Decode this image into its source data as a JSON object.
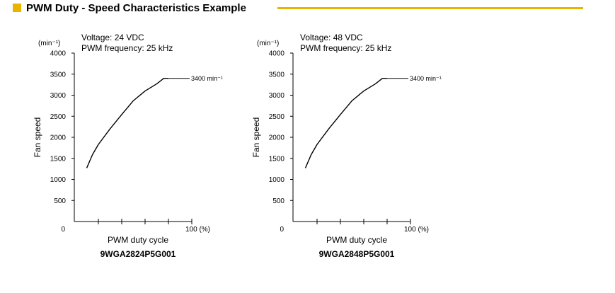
{
  "header": {
    "title": "PWM Duty - Speed Characteristics Example"
  },
  "colors": {
    "accent": "#E8B400",
    "line": "#000000"
  },
  "chart_data": [
    {
      "type": "line",
      "annotations": [
        "Voltage: 24 VDC",
        "PWM frequency: 25 kHz"
      ],
      "unit_label": "(min⁻¹)",
      "ylabel": "Fan speed",
      "xlabel": "PWM duty cycle",
      "x_end_label": "100 (%)",
      "origin_label": "0",
      "model": "9WGA2824P5G001",
      "end_label": "3400 min⁻¹",
      "ylim": [
        0,
        4000
      ],
      "xlim": [
        0,
        100
      ],
      "yticks": [
        500,
        1000,
        1500,
        2000,
        2500,
        3000,
        3500,
        4000
      ],
      "x": [
        10,
        15,
        20,
        30,
        40,
        50,
        60,
        70,
        76,
        80,
        100
      ],
      "y": [
        1270,
        1590,
        1830,
        2200,
        2540,
        2870,
        3100,
        3270,
        3400,
        3400,
        3400
      ]
    },
    {
      "type": "line",
      "annotations": [
        "Voltage: 48 VDC",
        "PWM frequency: 25 kHz"
      ],
      "unit_label": "(min⁻¹)",
      "ylabel": "Fan speed",
      "xlabel": "PWM duty cycle",
      "x_end_label": "100 (%)",
      "origin_label": "0",
      "model": "9WGA2848P5G001",
      "end_label": "3400 min⁻¹",
      "ylim": [
        0,
        4000
      ],
      "xlim": [
        0,
        100
      ],
      "yticks": [
        500,
        1000,
        1500,
        2000,
        2500,
        3000,
        3500,
        4000
      ],
      "x": [
        10,
        15,
        20,
        30,
        40,
        50,
        60,
        70,
        76,
        80,
        100
      ],
      "y": [
        1270,
        1590,
        1830,
        2200,
        2540,
        2870,
        3100,
        3270,
        3400,
        3400,
        3400
      ]
    }
  ]
}
